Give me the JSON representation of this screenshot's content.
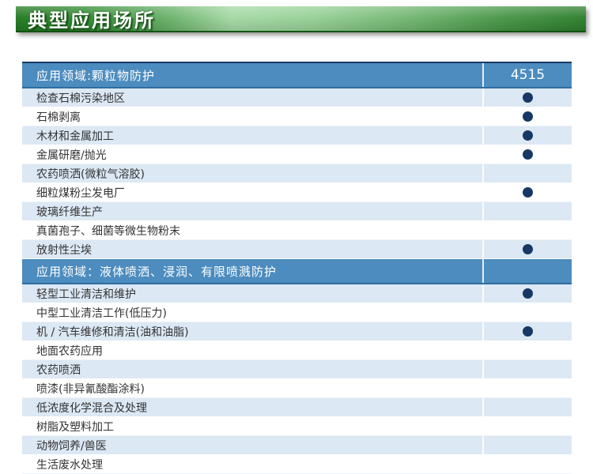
{
  "banner": {
    "title": "典型应用场所"
  },
  "table": {
    "product_column_header": "4515",
    "sections": [
      {
        "header": "应用领域:颗粒物防护",
        "header_value": "4515",
        "rows": [
          {
            "label": "检查石棉污染地区",
            "dot": true
          },
          {
            "label": "石棉剥离",
            "dot": true
          },
          {
            "label": "木材和金属加工",
            "dot": true
          },
          {
            "label": "金属研磨/抛光",
            "dot": true
          },
          {
            "label": "农药喷洒(微粒气溶胶)",
            "dot": false
          },
          {
            "label": "细粒煤粉尘发电厂",
            "dot": true
          },
          {
            "label": "玻璃纤维生产",
            "dot": false
          },
          {
            "label": "真菌孢子、细菌等微生物粉末",
            "dot": false
          },
          {
            "label": "放射性尘埃",
            "dot": true
          }
        ]
      },
      {
        "header": "应用领域：液体喷洒、浸润、有限喷溅防护",
        "header_value": "",
        "rows": [
          {
            "label": "轻型工业清洁和维护",
            "dot": true
          },
          {
            "label": "中型工业清洁工作(低压力)",
            "dot": false
          },
          {
            "label": "机 / 汽车维修和清洁(油和油脂)",
            "dot": true
          },
          {
            "label": "地面农药应用",
            "dot": false
          },
          {
            "label": "农药喷洒",
            "dot": false
          },
          {
            "label": "喷漆(非异氰酸酯涂料)",
            "dot": false
          },
          {
            "label": "低浓度化学混合及处理",
            "dot": false
          },
          {
            "label": "树脂及塑料加工",
            "dot": false
          },
          {
            "label": "动物饲养/兽医",
            "dot": false
          },
          {
            "label": "生活废水处理",
            "dot": false
          }
        ]
      }
    ]
  },
  "colors": {
    "banner_green_dark": "#2a7d2a",
    "banner_green_light": "#a3d8a3",
    "header_blue": "#4c8cbf",
    "row_alt_blue": "#dce8f4",
    "dot_navy": "#173864",
    "table_top_border": "#1a3a64"
  }
}
